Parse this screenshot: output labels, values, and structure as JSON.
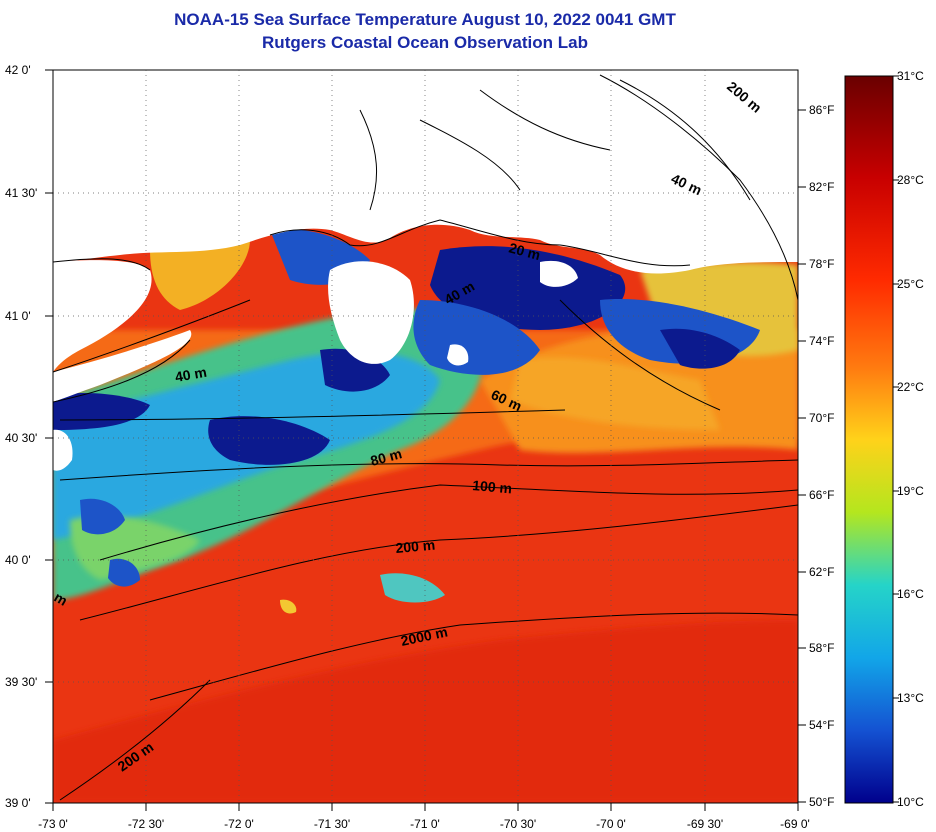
{
  "title": "NOAA-15 Sea Surface Temperature August 10, 2022 0041 GMT",
  "subtitle": "Rutgers Coastal Ocean Observation Lab",
  "axes": {
    "lat_labels": [
      "42 0'",
      "41 30'",
      "41 0'",
      "40 30'",
      "40 0'",
      "39 30'",
      "39 0'"
    ],
    "lon_labels": [
      "-73 0'",
      "-72 30'",
      "-72 0'",
      "-71 30'",
      "-71 0'",
      "-70 30'",
      "-70 0'",
      "-69 30'",
      "-69 0'"
    ]
  },
  "contour_labels": [
    "200 m",
    "40 m",
    "20 m",
    "40 m",
    "60 m",
    "80 m",
    "100 m",
    "200 m",
    "2000 m",
    "200 m",
    "m",
    "40 m"
  ],
  "colorbar": {
    "celsius_labels": [
      "31°C",
      "28°C",
      "25°C",
      "22°C",
      "19°C",
      "16°C",
      "13°C",
      "10°C"
    ],
    "fahrenheit_labels": [
      "86°F",
      "82°F",
      "78°F",
      "74°F",
      "70°F",
      "66°F",
      "62°F",
      "58°F",
      "54°F",
      "50°F"
    ],
    "colors": [
      "#6a0000",
      "#c80000",
      "#ff2a00",
      "#ff7a10",
      "#ffd21a",
      "#b4e61e",
      "#25d4c8",
      "#12a6e8",
      "#1452d2",
      "#00008c"
    ]
  },
  "map_colors": {
    "warm": "#ef3a14",
    "orange": "#f8781c",
    "yellow": "#f3c832",
    "green": "#5fcc74",
    "cyan": "#2cb8e0",
    "blue": "#1d54c8",
    "navy": "#0c1a8e",
    "land": "#ffffff"
  }
}
